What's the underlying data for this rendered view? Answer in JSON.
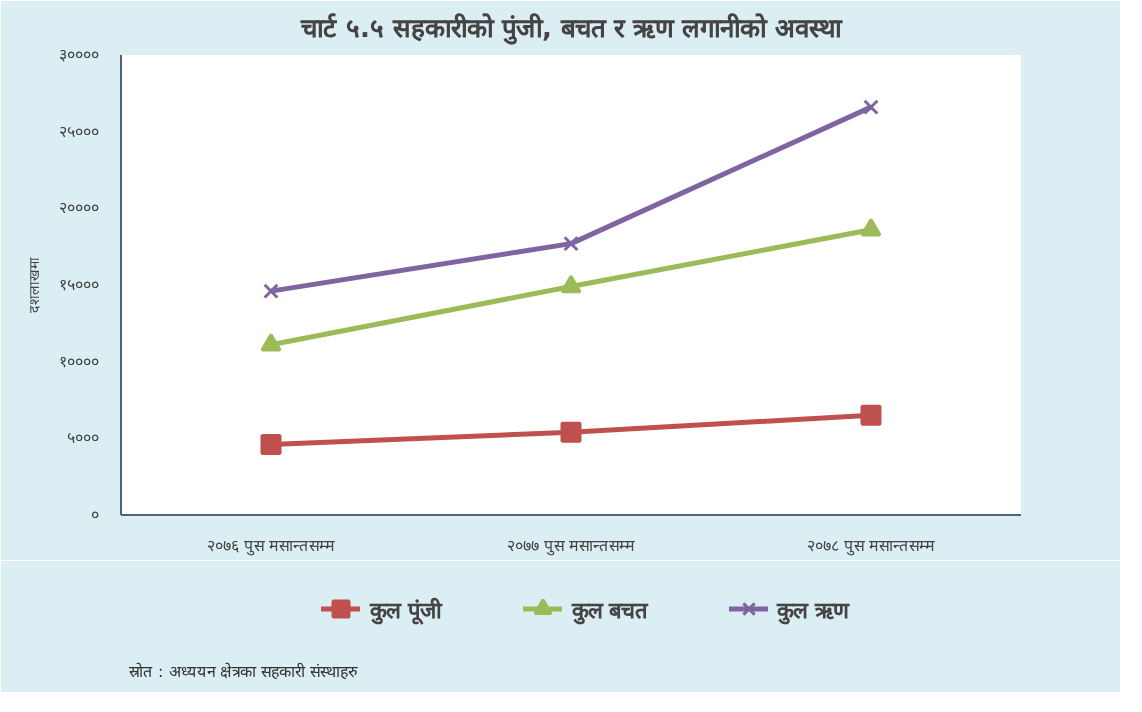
{
  "chart_data": {
    "type": "line",
    "title": "चार्ट ५.५ सहकारीको पुंजी, बचत र ऋण लगानीको अवस्था",
    "ylabel": "दशलाखमा",
    "categories": [
      "२०७६ पुस मसान्तसम्म",
      "२०७७ पुस मसान्तसम्म",
      "२०७८ पुस मसान्तसम्म"
    ],
    "series": [
      {
        "name": "कुल पूंजी",
        "color": "#c0504d",
        "marker": "square",
        "values": [
          4600,
          5400,
          6500
        ]
      },
      {
        "name": "कुल बचत",
        "color": "#9bbb59",
        "marker": "triangle",
        "values": [
          11100,
          14900,
          18600
        ]
      },
      {
        "name": "कुल ऋण",
        "color": "#8064a2",
        "marker": "cross",
        "values": [
          14600,
          17700,
          26600
        ]
      }
    ],
    "ylim": [
      0,
      30000
    ],
    "yticks": [
      {
        "value": 0,
        "label": "०"
      },
      {
        "value": 5000,
        "label": "५०००"
      },
      {
        "value": 10000,
        "label": "१००००"
      },
      {
        "value": 15000,
        "label": "१५०००"
      },
      {
        "value": 20000,
        "label": "२००००"
      },
      {
        "value": 25000,
        "label": "२५०००"
      },
      {
        "value": 30000,
        "label": "३००००"
      }
    ],
    "grid": false,
    "legend": "bottom",
    "line_style": "solid",
    "annotations": [
      "स्रोत : अध्ययन क्षेत्रका सहकारी संस्थाहरु"
    ]
  }
}
